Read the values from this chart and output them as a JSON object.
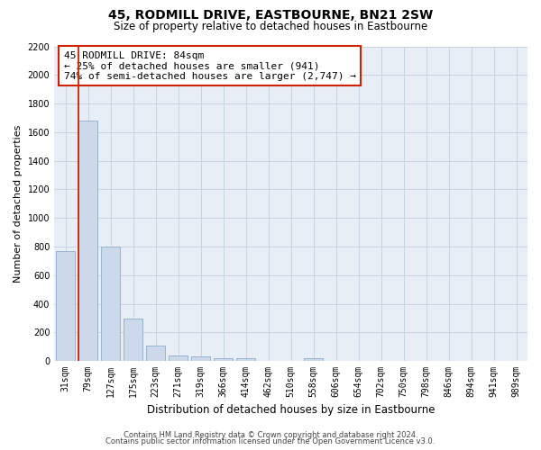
{
  "title": "45, RODMILL DRIVE, EASTBOURNE, BN21 2SW",
  "subtitle": "Size of property relative to detached houses in Eastbourne",
  "xlabel": "Distribution of detached houses by size in Eastbourne",
  "ylabel": "Number of detached properties",
  "bar_labels": [
    "31sqm",
    "79sqm",
    "127sqm",
    "175sqm",
    "223sqm",
    "271sqm",
    "319sqm",
    "366sqm",
    "414sqm",
    "462sqm",
    "510sqm",
    "558sqm",
    "606sqm",
    "654sqm",
    "702sqm",
    "750sqm",
    "798sqm",
    "846sqm",
    "894sqm",
    "941sqm",
    "989sqm"
  ],
  "bar_values": [
    770,
    1680,
    800,
    295,
    110,
    35,
    30,
    20,
    20,
    0,
    0,
    20,
    0,
    0,
    0,
    0,
    0,
    0,
    0,
    0,
    0
  ],
  "bar_color": "#ccd9ea",
  "bar_edge_color": "#9ab3cc",
  "vline_color": "#cc2200",
  "annotation_title": "45 RODMILL DRIVE: 84sqm",
  "annotation_line2": "← 25% of detached houses are smaller (941)",
  "annotation_line3": "74% of semi-detached houses are larger (2,747) →",
  "annotation_box_color": "#ffffff",
  "annotation_box_edge": "#cc2200",
  "ylim": [
    0,
    2200
  ],
  "yticks": [
    0,
    200,
    400,
    600,
    800,
    1000,
    1200,
    1400,
    1600,
    1800,
    2000,
    2200
  ],
  "footer_line1": "Contains HM Land Registry data © Crown copyright and database right 2024.",
  "footer_line2": "Contains public sector information licensed under the Open Government Licence v3.0.",
  "grid_color": "#c8d4e0",
  "background_color": "#e8eef5",
  "title_fontsize": 10,
  "subtitle_fontsize": 8.5,
  "ylabel_fontsize": 8,
  "xlabel_fontsize": 8.5,
  "tick_fontsize": 7,
  "annotation_fontsize": 8,
  "footer_fontsize": 6
}
